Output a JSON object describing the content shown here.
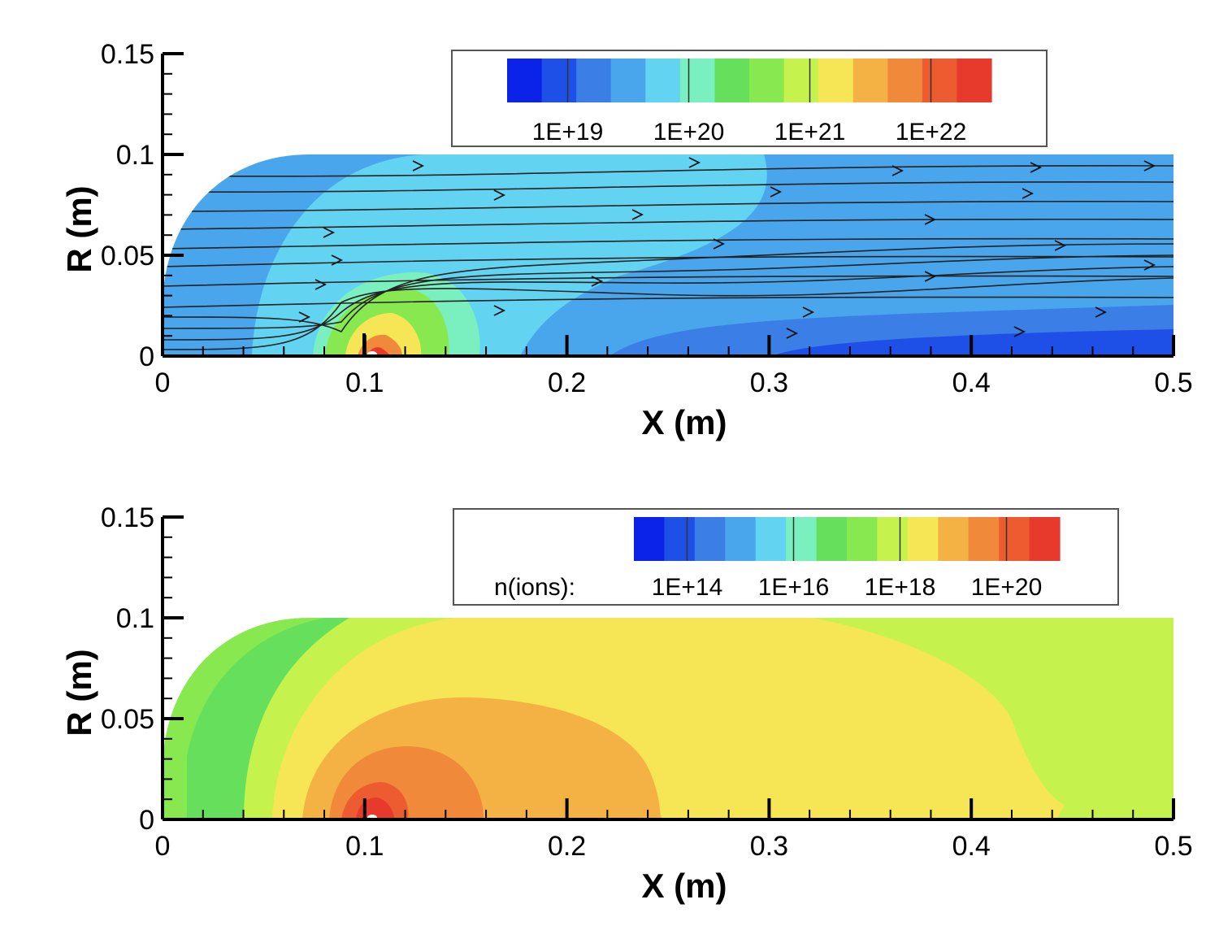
{
  "chart_data": [
    {
      "type": "heatmap",
      "title": "",
      "xlabel": "X (m)",
      "ylabel": "R (m)",
      "xlim": [
        0,
        0.5
      ],
      "ylim": [
        0,
        0.15
      ],
      "x_ticks": [
        "0",
        "0.1",
        "0.2",
        "0.3",
        "0.4",
        "0.5"
      ],
      "y_ticks": [
        "0",
        "0.05",
        "0.1",
        "0.15"
      ],
      "legend": {
        "placement": "top-right",
        "title": "",
        "tick_labels": [
          "1E+19",
          "1E+20",
          "1E+21",
          "1E+22"
        ],
        "colors": [
          "#0b22e8",
          "#1e4fe6",
          "#3a7ee6",
          "#4aa6ec",
          "#62d4f2",
          "#7af0c0",
          "#66e05c",
          "#88e850",
          "#c6f24e",
          "#f6e656",
          "#f4b244",
          "#f08a3a",
          "#ec5c30",
          "#e83a2c"
        ]
      },
      "streamlines": true,
      "field_features": [
        {
          "level_color": "#4aa6ec",
          "description_value": "upstream background ~1E+19–1E+20"
        },
        {
          "level_color": "#62d4f2",
          "description_value": "central plume ~1E+20"
        },
        {
          "level_color": "#f08a3a",
          "description_value": "peak near x=0.1, R=0"
        },
        {
          "level_color": "#1e4fe6",
          "description_value": "wake near axis ~1E+19"
        }
      ]
    },
    {
      "type": "heatmap",
      "title": "",
      "xlabel": "X (m)",
      "ylabel": "R (m)",
      "xlim": [
        0,
        0.5
      ],
      "ylim": [
        0,
        0.15
      ],
      "x_ticks": [
        "0",
        "0.1",
        "0.2",
        "0.3",
        "0.4",
        "0.5"
      ],
      "y_ticks": [
        "0",
        "0.05",
        "0.1",
        "0.15"
      ],
      "legend": {
        "placement": "top-right",
        "title": "n(ions):",
        "tick_labels": [
          "1E+14",
          "1E+16",
          "1E+18",
          "1E+20"
        ],
        "colors": [
          "#0b22e8",
          "#1e4fe6",
          "#3a7ee6",
          "#4aa6ec",
          "#62d4f2",
          "#7af0c0",
          "#66e05c",
          "#88e850",
          "#c6f24e",
          "#f6e656",
          "#f4b244",
          "#f08a3a",
          "#ec5c30",
          "#e83a2c"
        ]
      },
      "streamlines": false
    }
  ]
}
